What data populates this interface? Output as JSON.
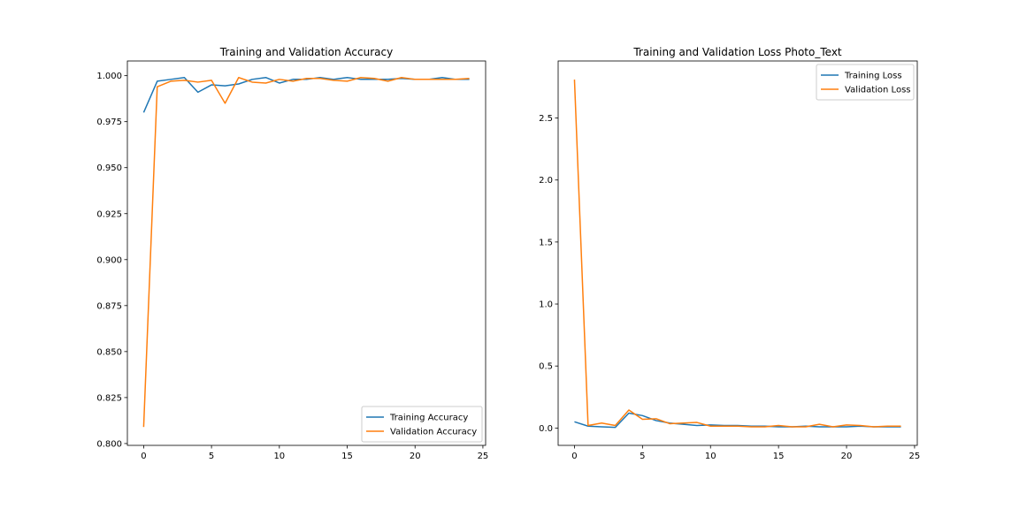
{
  "chart_data": [
    {
      "type": "line",
      "title": "Training and Validation Accuracy",
      "xlabel": "",
      "ylabel": "",
      "xlim": [
        -1.2,
        25.2
      ],
      "ylim": [
        0.799,
        1.008
      ],
      "xticks": [
        0,
        5,
        10,
        15,
        20,
        25
      ],
      "xtick_labels": [
        "0",
        "5",
        "10",
        "15",
        "20",
        "25"
      ],
      "yticks": [
        0.8,
        0.825,
        0.85,
        0.875,
        0.9,
        0.925,
        0.95,
        0.975,
        1.0
      ],
      "ytick_labels": [
        "0.800",
        "0.825",
        "0.850",
        "0.875",
        "0.900",
        "0.925",
        "0.950",
        "0.975",
        "1.000"
      ],
      "grid": false,
      "legend": "lower-right",
      "x": [
        0,
        1,
        2,
        3,
        4,
        5,
        6,
        7,
        8,
        9,
        10,
        11,
        12,
        13,
        14,
        15,
        16,
        17,
        18,
        19,
        20,
        21,
        22,
        23,
        24
      ],
      "series": [
        {
          "name": "Training Accuracy",
          "color": "#1f77b4",
          "values": [
            0.98,
            0.997,
            0.998,
            0.999,
            0.991,
            0.995,
            0.9945,
            0.9955,
            0.998,
            0.999,
            0.996,
            0.998,
            0.998,
            0.999,
            0.998,
            0.999,
            0.998,
            0.998,
            0.998,
            0.9985,
            0.998,
            0.998,
            0.999,
            0.998,
            0.998
          ]
        },
        {
          "name": "Validation Accuracy",
          "color": "#ff7f0e",
          "values": [
            0.809,
            0.994,
            0.997,
            0.9975,
            0.9965,
            0.9975,
            0.985,
            0.999,
            0.9965,
            0.996,
            0.998,
            0.997,
            0.9985,
            0.9985,
            0.9975,
            0.997,
            0.999,
            0.9985,
            0.997,
            0.999,
            0.998,
            0.998,
            0.998,
            0.998,
            0.9985
          ]
        }
      ]
    },
    {
      "type": "line",
      "title": "Training and Validation Loss Photo_Text",
      "xlabel": "",
      "ylabel": "",
      "xlim": [
        -1.2,
        25.2
      ],
      "ylim": [
        -0.14,
        2.96
      ],
      "xticks": [
        0,
        5,
        10,
        15,
        20,
        25
      ],
      "xtick_labels": [
        "0",
        "5",
        "10",
        "15",
        "20",
        "25"
      ],
      "yticks": [
        0.0,
        0.5,
        1.0,
        1.5,
        2.0,
        2.5
      ],
      "ytick_labels": [
        "0.0",
        "0.5",
        "1.0",
        "1.5",
        "2.0",
        "2.5"
      ],
      "grid": false,
      "legend": "upper-right",
      "x": [
        0,
        1,
        2,
        3,
        4,
        5,
        6,
        7,
        8,
        9,
        10,
        11,
        12,
        13,
        14,
        15,
        16,
        17,
        18,
        19,
        20,
        21,
        22,
        23,
        24
      ],
      "series": [
        {
          "name": "Training Loss",
          "color": "#1f77b4",
          "values": [
            0.05,
            0.015,
            0.01,
            0.005,
            0.12,
            0.1,
            0.06,
            0.04,
            0.03,
            0.02,
            0.025,
            0.02,
            0.02,
            0.015,
            0.015,
            0.01,
            0.01,
            0.015,
            0.01,
            0.01,
            0.01,
            0.015,
            0.01,
            0.01,
            0.01
          ]
        },
        {
          "name": "Validation Loss",
          "color": "#ff7f0e",
          "values": [
            2.81,
            0.02,
            0.04,
            0.02,
            0.145,
            0.07,
            0.075,
            0.035,
            0.04,
            0.045,
            0.015,
            0.015,
            0.015,
            0.01,
            0.01,
            0.02,
            0.01,
            0.01,
            0.03,
            0.01,
            0.025,
            0.02,
            0.01,
            0.015,
            0.015
          ]
        }
      ]
    }
  ]
}
